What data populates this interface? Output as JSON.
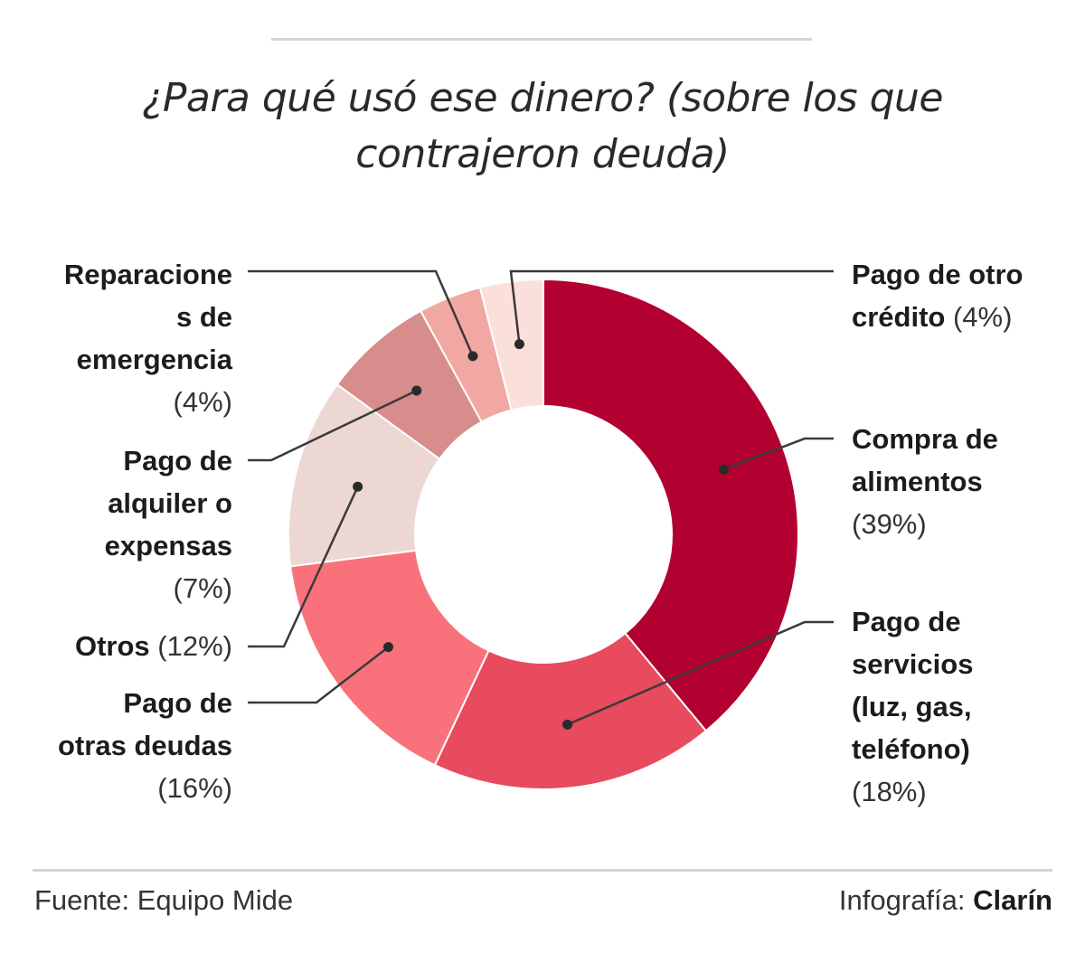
{
  "title": "¿Para qué usó ese dinero? (sobre los que contrajeron deuda)",
  "title_lines": [
    "¿Para qué usó ese dinero? (sobre los que",
    "contrajeron deuda)"
  ],
  "chart_data": {
    "type": "pie",
    "style": "donut",
    "title": "¿Para qué usó ese dinero? (sobre los que contrajeron deuda)",
    "slices": [
      {
        "name": "Compra de alimentos",
        "value": 39,
        "label": "(39%)",
        "color": "#b20031"
      },
      {
        "name": "Pago de servicios (luz, gas, teléfono)",
        "value": 18,
        "label": "(18%)",
        "color": "#e84a5e"
      },
      {
        "name": "Pago de otras deudas",
        "value": 16,
        "label": "(16%)",
        "color": "#f9727b"
      },
      {
        "name": "Otros",
        "value": 12,
        "label": "(12%)",
        "color": "#ecd7d2"
      },
      {
        "name": "Pago de alquiler o expensas",
        "value": 7,
        "label": "(7%)",
        "color": "#d68d8b"
      },
      {
        "name": "Reparaciones de emergencia",
        "value": 4,
        "label": "(4%)",
        "color": "#f1a8a3"
      },
      {
        "name": "Pago de otro crédito",
        "value": 4,
        "label": "(4%)",
        "color": "#fbdfda"
      }
    ]
  },
  "labels": {
    "otro_credito": {
      "lines": [
        "Pago de otro",
        "crédito"
      ],
      "pct": "(4%)"
    },
    "alimentos": {
      "lines": [
        "Compra de",
        "alimentos"
      ],
      "pct": "(39%)"
    },
    "servicios": {
      "lines": [
        "Pago de",
        "servicios",
        "(luz, gas,",
        "teléfono)"
      ],
      "pct": "(18%)"
    },
    "reparaciones": {
      "lines": [
        "Reparacione",
        "s de",
        "emergencia"
      ],
      "pct": "(4%)"
    },
    "alquiler": {
      "lines": [
        "Pago de",
        "alquiler o",
        "expensas"
      ],
      "pct": "(7%)"
    },
    "otros": {
      "lines": [
        "Otros"
      ],
      "pct": "(12%)"
    },
    "otras_deudas": {
      "lines": [
        "Pago de",
        "otras deudas"
      ],
      "pct": "(16%)"
    }
  },
  "footer": {
    "source": "Fuente: Equipo Mide",
    "credit_prefix": "Infografía: ",
    "credit_brand": "Clarín"
  }
}
